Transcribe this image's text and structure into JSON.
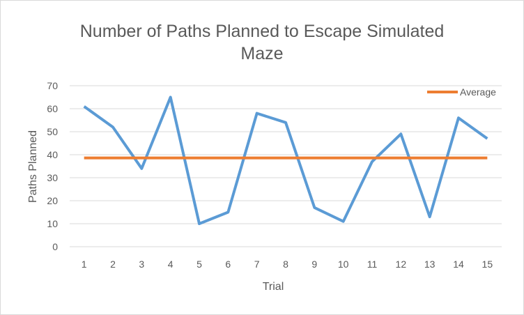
{
  "chart_data": {
    "type": "line",
    "title_lines": [
      "Number of Paths Planned to Escape Simulated",
      "Maze"
    ],
    "xlabel": "Trial",
    "ylabel": "Paths Planned",
    "categories": [
      "1",
      "2",
      "3",
      "4",
      "5",
      "6",
      "7",
      "8",
      "9",
      "10",
      "11",
      "12",
      "13",
      "14",
      "15"
    ],
    "ylim": [
      0,
      70
    ],
    "yticks": [
      0,
      10,
      20,
      30,
      40,
      50,
      60,
      70
    ],
    "grid": true,
    "legend_position": "top-right",
    "series": [
      {
        "values": [
          61,
          52,
          34,
          65,
          10,
          15,
          58,
          54,
          17,
          11,
          37,
          49,
          13,
          56,
          47
        ],
        "color": "#5b9bd5"
      },
      {
        "name": "Average",
        "values": [
          38.6,
          38.6,
          38.6,
          38.6,
          38.6,
          38.6,
          38.6,
          38.6,
          38.6,
          38.6,
          38.6,
          38.6,
          38.6,
          38.6,
          38.6
        ],
        "color": "#ed7d31"
      }
    ]
  }
}
